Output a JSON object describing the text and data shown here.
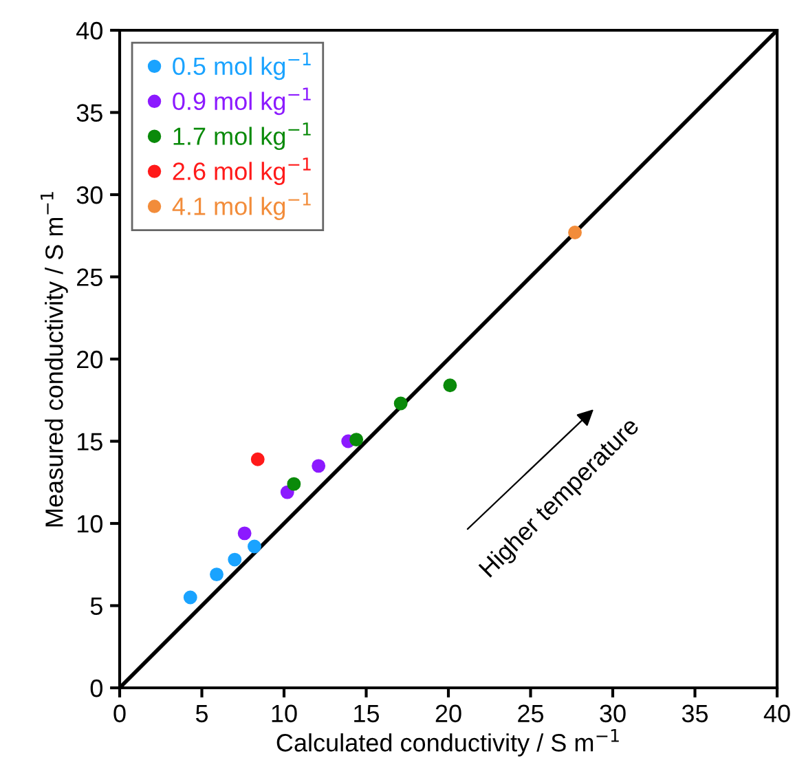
{
  "chart_data": {
    "type": "scatter",
    "xlabel": "Calculated conductivity / S m$^{−1}$",
    "ylabel": "Measured conductivity / S m$^{−1}$",
    "xlim": [
      0,
      40
    ],
    "ylim": [
      0,
      40
    ],
    "xticks": [
      0,
      5,
      10,
      15,
      20,
      25,
      30,
      35,
      40
    ],
    "yticks": [
      0,
      5,
      10,
      15,
      20,
      25,
      30,
      35,
      40
    ],
    "grid": false,
    "legend": "top left",
    "marker": "circle",
    "annotations": [
      "Higher temperature"
    ],
    "series": [
      {
        "type": "line",
        "color": "#000000",
        "x": [
          0,
          40
        ],
        "values": [
          0,
          40
        ],
        "marker": "none",
        "line_style": "solid"
      },
      {
        "name": "0.5 mol kg$^{−1}$",
        "color": "#1aa3ff",
        "x": [
          4.3,
          5.9,
          7.0,
          8.2
        ],
        "values": [
          5.5,
          6.9,
          7.8,
          8.6
        ]
      },
      {
        "name": "0.9 mol kg$^{−1}$",
        "color": "#8c1aff",
        "x": [
          7.6,
          10.2,
          12.1,
          13.9
        ],
        "values": [
          9.4,
          11.9,
          13.5,
          15.0
        ]
      },
      {
        "name": "1.7 mol kg$^{−1}$",
        "color": "#0a8a0a",
        "x": [
          10.6,
          14.4,
          17.1,
          20.1
        ],
        "values": [
          12.4,
          15.1,
          17.3,
          18.4
        ]
      },
      {
        "name": "2.6 mol kg$^{−1}$",
        "color": "#ff1a1a",
        "x": [
          8.4
        ],
        "values": [
          13.9
        ]
      },
      {
        "name": "4.1 mol kg$^{−1}$",
        "color": "#f28c3a",
        "x": [
          27.7
        ],
        "values": [
          27.7
        ]
      }
    ]
  }
}
